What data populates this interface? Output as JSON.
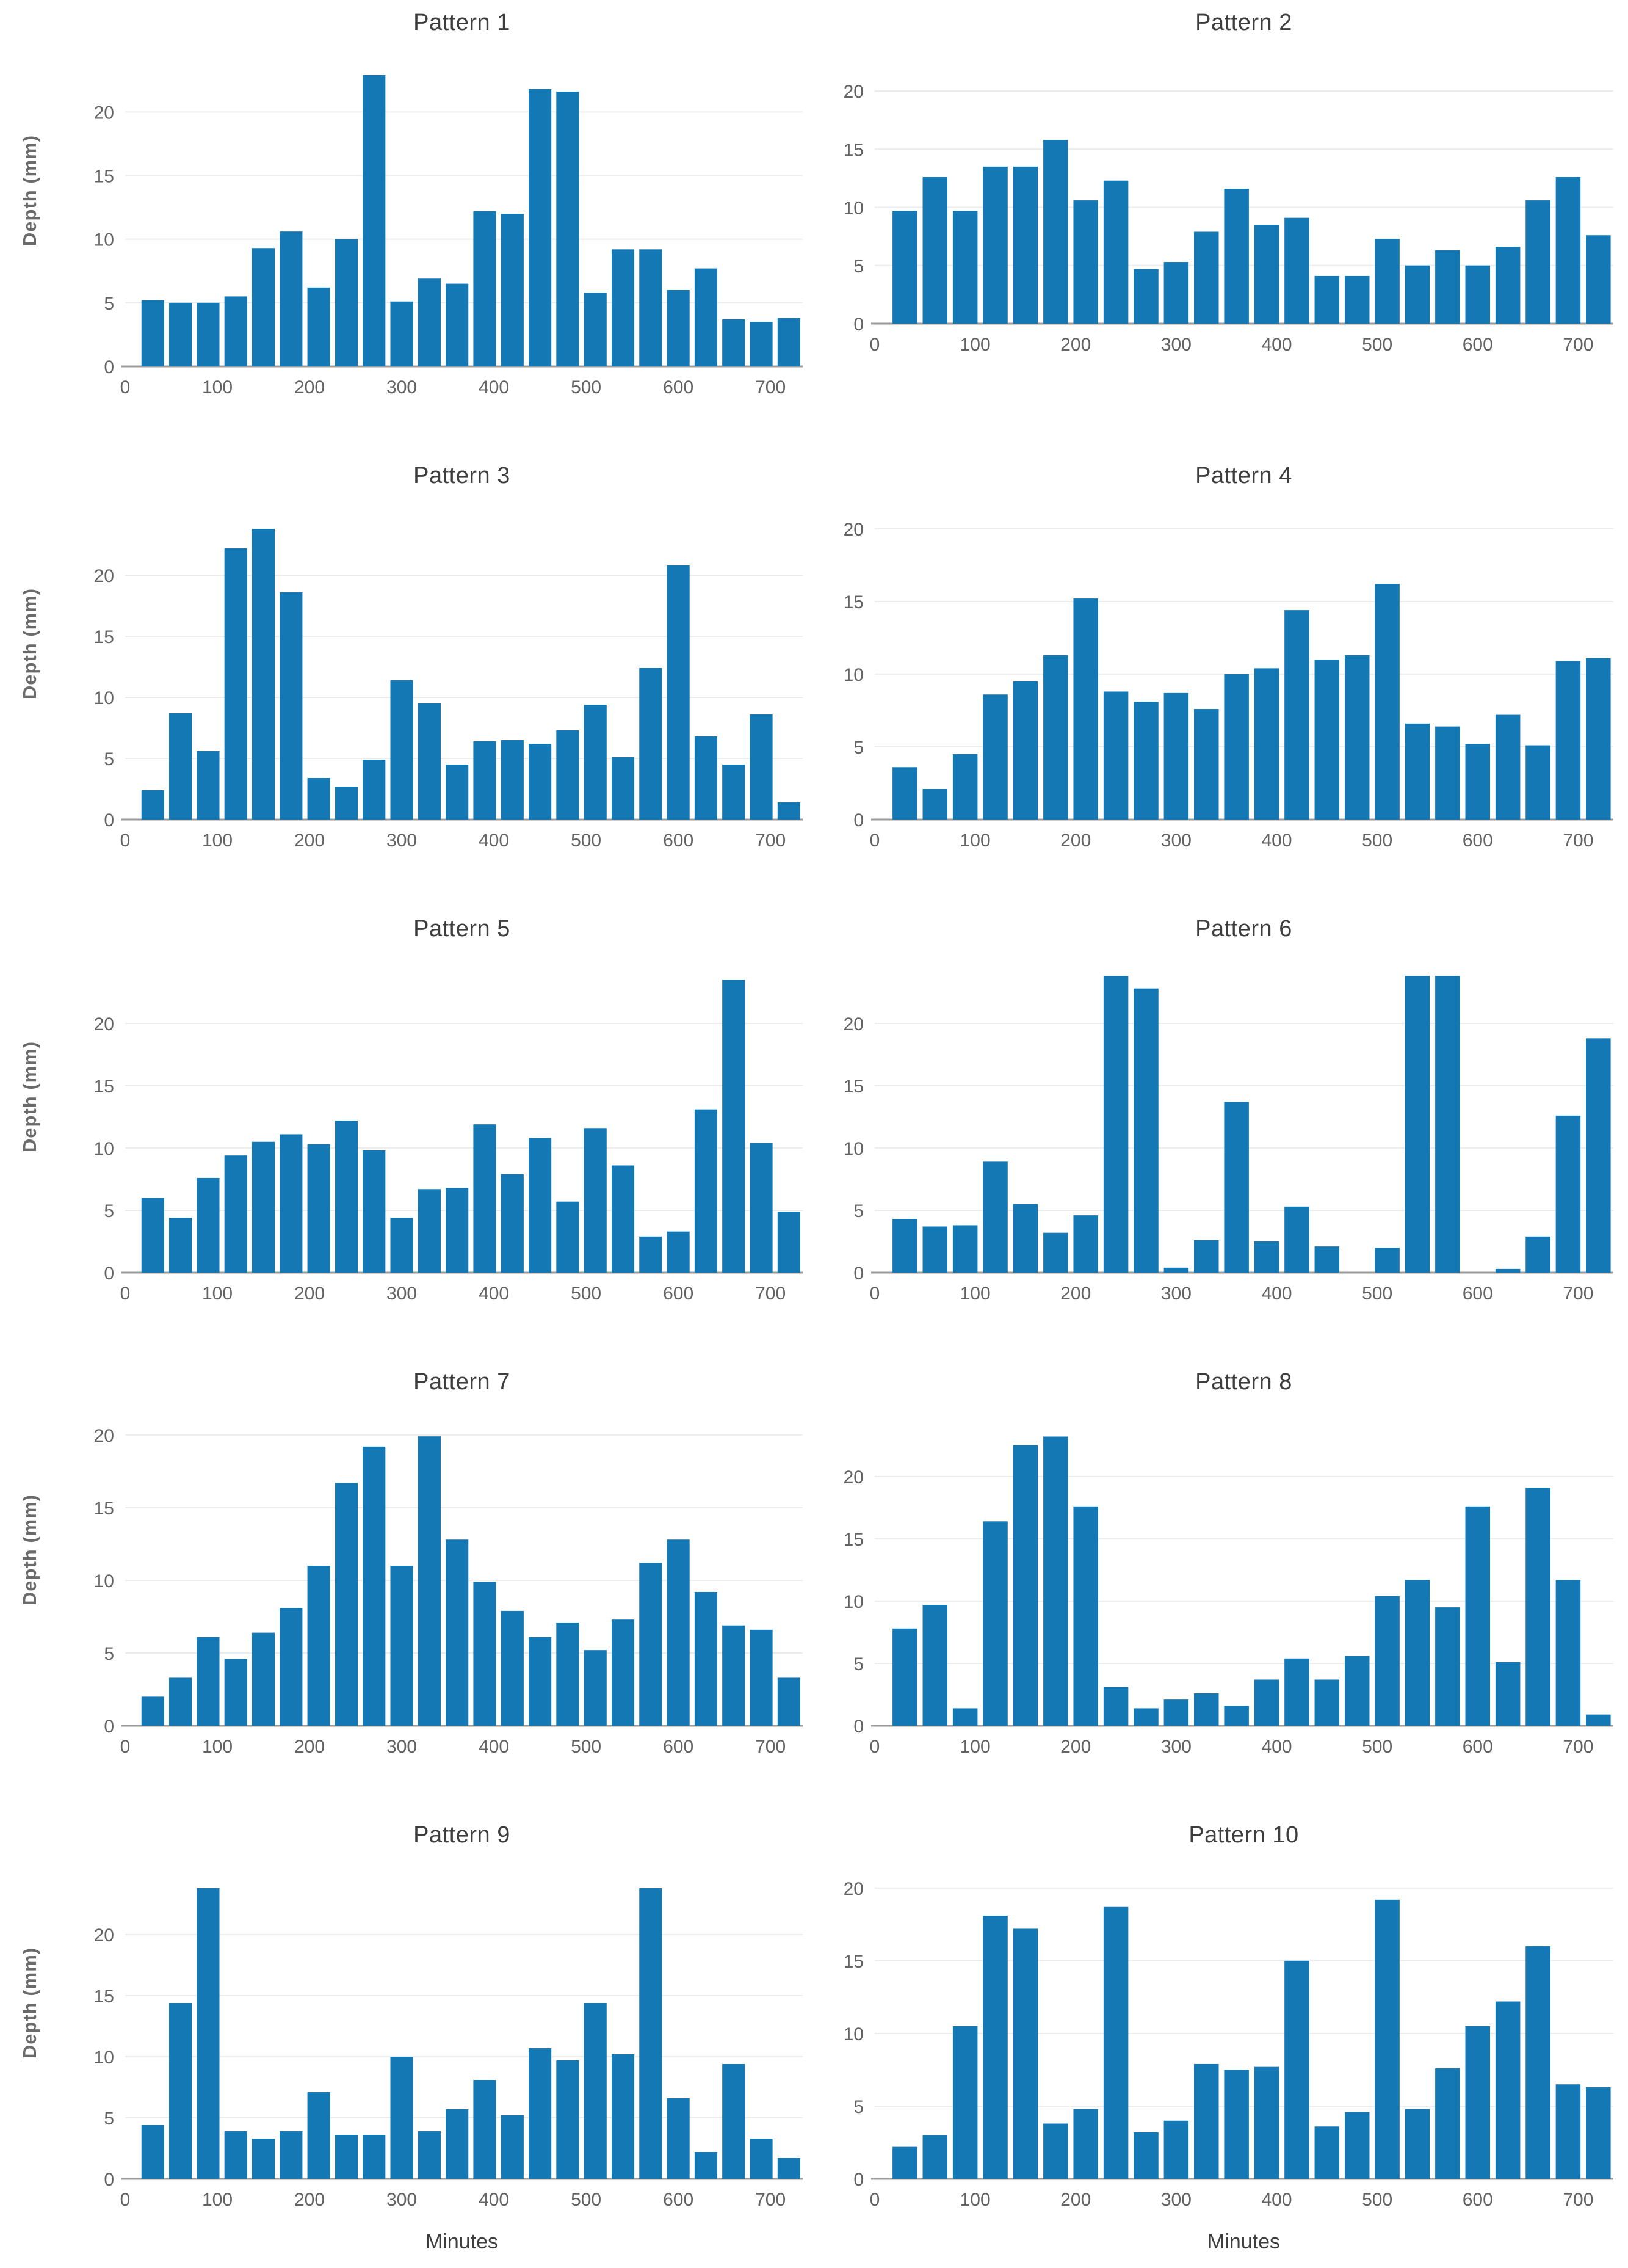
{
  "style": {
    "bar_color": "#1478b4",
    "grid_color": "#ececec",
    "axis_line_color": "#9b9b9b",
    "tick_label_color": "#636363",
    "title_color": "#3e3e3e"
  },
  "axes": {
    "x_minutes": [
      30,
      60,
      90,
      120,
      150,
      180,
      210,
      240,
      270,
      300,
      330,
      360,
      390,
      420,
      450,
      480,
      510,
      540,
      570,
      600,
      630,
      660,
      690,
      720
    ],
    "xticks": [
      0,
      100,
      200,
      300,
      400,
      500,
      600,
      700
    ],
    "yticks": [
      0,
      5,
      10,
      15,
      20
    ],
    "xlim": [
      0,
      735
    ]
  },
  "chart_data": [
    {
      "type": "bar",
      "title": "Pattern 1",
      "ylabel": "Depth (mm)",
      "xlabel": "",
      "ylim": [
        0,
        24
      ],
      "values": [
        5.2,
        5.0,
        5.0,
        5.5,
        9.3,
        10.6,
        6.2,
        10.0,
        22.9,
        5.1,
        6.9,
        6.5,
        12.2,
        12.0,
        21.8,
        21.6,
        5.8,
        9.2,
        9.2,
        6.0,
        7.7,
        3.7,
        3.5,
        3.8
      ]
    },
    {
      "type": "bar",
      "title": "Pattern 2",
      "ylabel": "",
      "xlabel": "",
      "ylim": [
        0,
        21
      ],
      "values": [
        9.7,
        12.6,
        9.7,
        13.5,
        13.5,
        15.8,
        10.6,
        12.3,
        4.7,
        5.3,
        7.9,
        11.6,
        8.5,
        9.1,
        4.1,
        4.1,
        7.3,
        5.0,
        6.3,
        5.0,
        6.6,
        10.6,
        12.6,
        7.6
      ]
    },
    {
      "type": "bar",
      "title": "Pattern 3",
      "ylabel": "Depth (mm)",
      "xlabel": "",
      "ylim": [
        0,
        25
      ],
      "values": [
        2.4,
        8.7,
        5.6,
        22.2,
        23.8,
        18.6,
        3.4,
        2.7,
        4.9,
        11.4,
        9.5,
        4.5,
        6.4,
        6.5,
        6.2,
        7.3,
        9.4,
        5.1,
        12.4,
        20.8,
        6.8,
        4.5,
        8.6,
        1.4
      ]
    },
    {
      "type": "bar",
      "title": "Pattern 4",
      "ylabel": "",
      "xlabel": "",
      "ylim": [
        0,
        21
      ],
      "values": [
        3.6,
        2.1,
        4.5,
        8.6,
        9.5,
        11.3,
        15.2,
        8.8,
        8.1,
        8.7,
        7.6,
        10.0,
        10.4,
        14.4,
        11.0,
        11.3,
        16.2,
        6.6,
        6.4,
        5.2,
        7.2,
        5.1,
        10.9,
        11.1
      ]
    },
    {
      "type": "bar",
      "title": "Pattern 5",
      "ylabel": "Depth (mm)",
      "xlabel": "",
      "ylim": [
        0,
        24.5
      ],
      "values": [
        6.0,
        4.4,
        7.6,
        9.4,
        10.5,
        11.1,
        10.3,
        12.2,
        9.8,
        4.4,
        6.7,
        6.8,
        11.9,
        7.9,
        10.8,
        5.7,
        11.6,
        8.6,
        2.9,
        3.3,
        13.1,
        23.5,
        10.4,
        4.9
      ]
    },
    {
      "type": "bar",
      "title": "Pattern 6",
      "ylabel": "",
      "xlabel": "",
      "ylim": [
        0,
        24.5
      ],
      "values": [
        4.3,
        3.7,
        3.8,
        8.9,
        5.5,
        3.2,
        4.6,
        23.8,
        22.8,
        0.4,
        2.6,
        13.7,
        2.5,
        5.3,
        2.1,
        0,
        2.0,
        23.8,
        23.8,
        0,
        0.3,
        2.9,
        12.6,
        18.8
      ]
    },
    {
      "type": "bar",
      "title": "Pattern 7",
      "ylabel": "Depth (mm)",
      "xlabel": "",
      "ylim": [
        0,
        21
      ],
      "values": [
        2.0,
        3.3,
        6.1,
        4.6,
        6.4,
        8.1,
        11.0,
        16.7,
        19.2,
        11.0,
        19.9,
        12.8,
        9.9,
        7.9,
        6.1,
        7.1,
        5.2,
        7.3,
        11.2,
        12.8,
        9.2,
        6.9,
        6.6,
        3.3
      ]
    },
    {
      "type": "bar",
      "title": "Pattern 8",
      "ylabel": "",
      "xlabel": "",
      "ylim": [
        0,
        24.5
      ],
      "values": [
        7.8,
        9.7,
        1.4,
        16.4,
        22.5,
        23.2,
        17.6,
        3.1,
        1.4,
        2.1,
        2.6,
        1.6,
        3.7,
        5.4,
        3.7,
        5.6,
        10.4,
        11.7,
        9.5,
        17.6,
        5.1,
        19.1,
        11.7,
        0.9
      ]
    },
    {
      "type": "bar",
      "title": "Pattern 9",
      "ylabel": "Depth (mm)",
      "xlabel": "Minutes",
      "ylim": [
        0,
        25
      ],
      "values": [
        4.4,
        14.4,
        23.8,
        3.9,
        3.3,
        3.9,
        7.1,
        3.6,
        3.6,
        10.0,
        3.9,
        5.7,
        8.1,
        5.2,
        10.7,
        9.7,
        14.4,
        10.2,
        23.8,
        6.6,
        2.2,
        9.4,
        3.3,
        1.7
      ]
    },
    {
      "type": "bar",
      "title": "Pattern 10",
      "ylabel": "",
      "xlabel": "Minutes",
      "ylim": [
        0,
        21
      ],
      "values": [
        2.2,
        3.0,
        10.5,
        18.1,
        17.2,
        3.8,
        4.8,
        18.7,
        3.2,
        4.0,
        7.9,
        7.5,
        7.7,
        15.0,
        3.6,
        4.6,
        19.2,
        4.8,
        7.6,
        10.5,
        12.2,
        16.0,
        6.5,
        6.3
      ]
    }
  ]
}
